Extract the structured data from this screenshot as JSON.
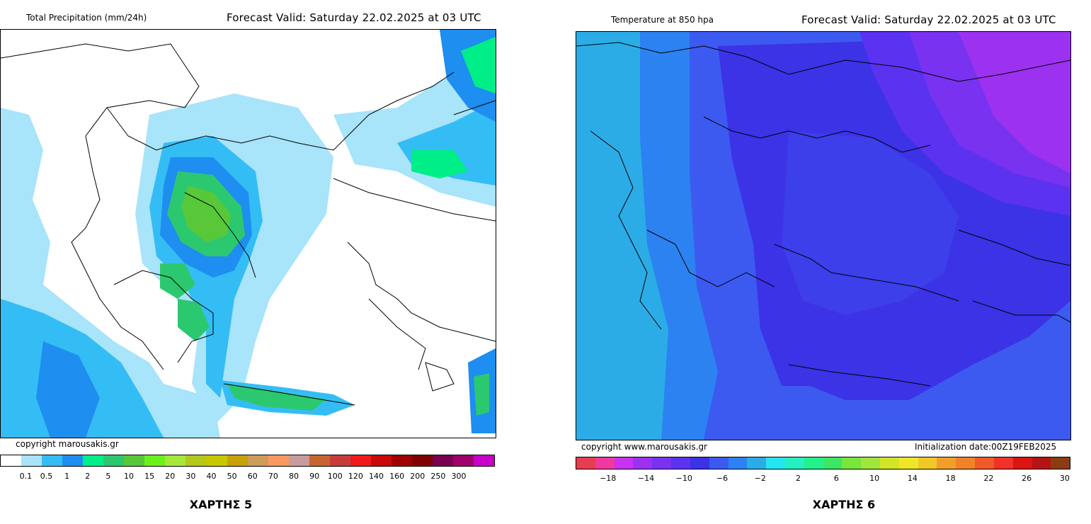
{
  "precip_map": {
    "title_left": "Total Precipitation (mm/24h)",
    "title_right": "Forecast Valid:  Saturday 22.02.2025 at 03 UTC",
    "copyright": "copyright marousakis.gr",
    "scale_colors": [
      "#ffffff",
      "#a8e4fa",
      "#34bdf5",
      "#1e8ef0",
      "#00ee88",
      "#2cc870",
      "#58c838",
      "#6cf21a",
      "#a4e83c",
      "#b4c81c",
      "#c8c800",
      "#c8a008",
      "#cc9c58",
      "#fa9860",
      "#c89c9c",
      "#c86430",
      "#c83c3c",
      "#f01a1a",
      "#c80a0a",
      "#a00000",
      "#800000",
      "#780050",
      "#a0006c",
      "#c800c8"
    ],
    "scale_labels": [
      "0.1",
      "0.5",
      "1",
      "2",
      "5",
      "10",
      "15",
      "20",
      "30",
      "40",
      "50",
      "60",
      "70",
      "80",
      "90",
      "100",
      "120",
      "140",
      "160",
      "200",
      "250",
      "300"
    ],
    "caption": "ΧΑΡΤΗΣ 5"
  },
  "temp_map": {
    "title_left": "Temperature at 850 hpa",
    "title_right": "Forecast Valid:  Saturday 22.02.2025 at 03 UTC",
    "copyright": "copyright www.marousakis.gr",
    "init": "Initialization date:00Z19FEB2025",
    "scale_colors": [
      "#e83c50",
      "#f038a0",
      "#c832f0",
      "#9c32f0",
      "#7832f0",
      "#5a32f0",
      "#3c32e6",
      "#3c5af0",
      "#2c82f0",
      "#2cace6",
      "#24e6f0",
      "#24f0c0",
      "#24f08c",
      "#3ce664",
      "#78e63c",
      "#a0e63c",
      "#d2e628",
      "#f0e628",
      "#f0c828",
      "#f0a028",
      "#f08228",
      "#f05a28",
      "#f03228",
      "#dc1414",
      "#b41414",
      "#8c3c14"
    ],
    "scale_labels": [
      "−18",
      "−14",
      "−10",
      "−6",
      "−2",
      "2",
      "6",
      "10",
      "14",
      "18",
      "22",
      "26",
      "30"
    ],
    "caption": "ΧΑΡΤΗΣ 6"
  }
}
